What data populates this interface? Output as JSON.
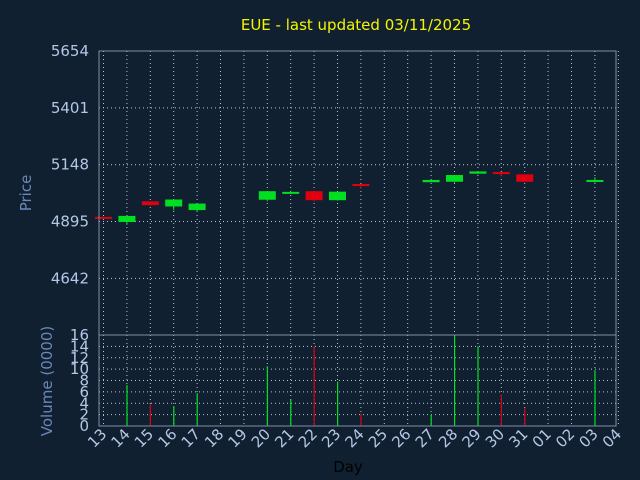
{
  "chart_data": {
    "type": "candlestick",
    "title": "EUE - last updated 03/11/2025",
    "xlabel": "Day",
    "price_panel": {
      "ylabel": "Price",
      "ylim": [
        4390,
        5654
      ],
      "yticks": [
        4642,
        4895,
        5148,
        5401,
        5654
      ],
      "grid": true
    },
    "volume_panel": {
      "ylabel": "Volume (0000)",
      "ylim": [
        0,
        16
      ],
      "yticks": [
        0,
        2,
        4,
        6,
        8,
        10,
        12,
        14,
        16
      ],
      "grid": true
    },
    "x_tick_labels": [
      "13",
      "14",
      "15",
      "16",
      "17",
      "18",
      "19",
      "20",
      "21",
      "22",
      "23",
      "24",
      "25",
      "26",
      "27",
      "28",
      "29",
      "30",
      "31",
      "01",
      "02",
      "03",
      "04"
    ],
    "candles": [
      {
        "day": "13",
        "open": 4916,
        "close": 4907,
        "high": 4916,
        "low": 4905,
        "volume": 0
      },
      {
        "day": "14",
        "open": 4893,
        "close": 4920,
        "high": 4920,
        "low": 4880,
        "volume": 7.2
      },
      {
        "day": "15",
        "open": 4985,
        "close": 4968,
        "high": 4985,
        "low": 4965,
        "volume": 3.8
      },
      {
        "day": "16",
        "open": 4962,
        "close": 4993,
        "high": 4993,
        "low": 4945,
        "volume": 3.5
      },
      {
        "day": "17",
        "open": 4946,
        "close": 4975,
        "high": 4975,
        "low": 4940,
        "volume": 5.8
      },
      {
        "day": "20",
        "open": 4992,
        "close": 5030,
        "high": 5030,
        "low": 4985,
        "volume": 10.5
      },
      {
        "day": "21",
        "open": 5020,
        "close": 5027,
        "high": 5032,
        "low": 5018,
        "volume": 4.7
      },
      {
        "day": "22",
        "open": 5030,
        "close": 4990,
        "high": 5030,
        "low": 4985,
        "volume": 14.0
      },
      {
        "day": "23",
        "open": 4990,
        "close": 5028,
        "high": 5028,
        "low": 4988,
        "volume": 7.8
      },
      {
        "day": "24",
        "open": 5062,
        "close": 5058,
        "high": 5062,
        "low": 5040,
        "volume": 2.2
      },
      {
        "day": "27",
        "open": 5070,
        "close": 5080,
        "high": 5080,
        "low": 5070,
        "volume": 2.0
      },
      {
        "day": "28",
        "open": 5072,
        "close": 5102,
        "high": 5102,
        "low": 5068,
        "volume": 16.0
      },
      {
        "day": "29",
        "open": 5108,
        "close": 5118,
        "high": 5120,
        "low": 5106,
        "volume": 14.0
      },
      {
        "day": "30",
        "open": 5115,
        "close": 5107,
        "high": 5115,
        "low": 5095,
        "volume": 5.5
      },
      {
        "day": "31",
        "open": 5105,
        "close": 5072,
        "high": 5105,
        "low": 5070,
        "volume": 3.2
      },
      {
        "day": "03",
        "open": 5072,
        "close": 5080,
        "high": 5092,
        "low": 5068,
        "volume": 9.8
      }
    ],
    "colors": {
      "background": "#102030",
      "plot_border": "#7f90a8",
      "grid": "#b8c4d2",
      "up": "#00e020",
      "down": "#e00010",
      "title": "#f5f500",
      "label": "#6a88b8",
      "tick_label": "#b4c8e6",
      "xlabel": "#000000"
    }
  }
}
